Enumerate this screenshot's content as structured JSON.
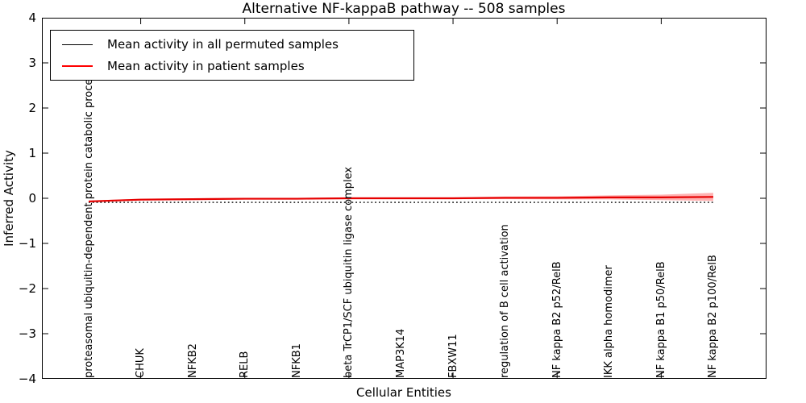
{
  "title": "Alternative NF-kappaB pathway -- 508 samples",
  "axes": {
    "ylabel": "Inferred Activity",
    "xlabel": "Cellular Entities"
  },
  "legend": {
    "items": [
      {
        "label": "Mean activity in all permuted samples",
        "color": "#000000",
        "linestyle": "solid"
      },
      {
        "label": "Mean activity in patient samples",
        "color": "#ff0000",
        "linestyle": "solid"
      }
    ],
    "position": "upper left"
  },
  "colors": {
    "patient_line": "#e60000",
    "patient_band": "rgba(255,0,0,0.3)",
    "permuted_line": "#000000",
    "axis": "#000000",
    "background": "#ffffff"
  },
  "chart_data": {
    "type": "line",
    "title": "Alternative NF-kappaB pathway -- 508 samples",
    "xlabel": "Cellular Entities",
    "ylabel": "Inferred Activity",
    "ylim": [
      -4,
      4
    ],
    "xlim": [
      0,
      14
    ],
    "grid": false,
    "legend_position": "upper left",
    "x": [
      1,
      2,
      3,
      4,
      5,
      6,
      7,
      8,
      9,
      10,
      11,
      12,
      13
    ],
    "categories": [
      "proteasomal ubiquitin-dependent protein catabolic process",
      "CHUK",
      "NFKB2",
      "RELB",
      "NFKB1",
      "beta TrCP1/SCF ubiquitin ligase complex",
      "MAP3K14",
      "FBXW11",
      "regulation of B cell activation",
      "NF kappa B2 p52/RelB",
      "IKK alpha homodimer",
      "NF kappa B1 p50/RelB",
      "NF kappa B2 p100/RelB"
    ],
    "x_tick_positions": [
      2,
      4,
      6,
      8,
      10,
      12
    ],
    "y_ticks": [
      {
        "label": "4",
        "value": 4
      },
      {
        "label": "3",
        "value": 3
      },
      {
        "label": "2",
        "value": 2
      },
      {
        "label": "1",
        "value": 1
      },
      {
        "label": "0",
        "value": 0
      },
      {
        "label": "−1",
        "value": -1
      },
      {
        "label": "−2",
        "value": -2
      },
      {
        "label": "−3",
        "value": -3
      },
      {
        "label": "−4",
        "value": -4
      }
    ],
    "series": [
      {
        "name": "Mean activity in all permuted samples",
        "color": "#000000",
        "linestyle": "dotted",
        "values": [
          -0.09,
          -0.09,
          -0.09,
          -0.09,
          -0.09,
          -0.09,
          -0.09,
          -0.09,
          -0.09,
          -0.09,
          -0.09,
          -0.09,
          -0.09
        ]
      },
      {
        "name": "Mean activity in patient samples",
        "color": "#ff0000",
        "linestyle": "solid",
        "values": [
          -0.07,
          -0.03,
          -0.02,
          -0.01,
          -0.01,
          0.0,
          0.0,
          0.0,
          0.01,
          0.01,
          0.02,
          0.02,
          0.03
        ],
        "ci_halfwidth": [
          0.02,
          0.02,
          0.02,
          0.02,
          0.02,
          0.02,
          0.02,
          0.02,
          0.03,
          0.035,
          0.045,
          0.06,
          0.09
        ]
      }
    ]
  }
}
